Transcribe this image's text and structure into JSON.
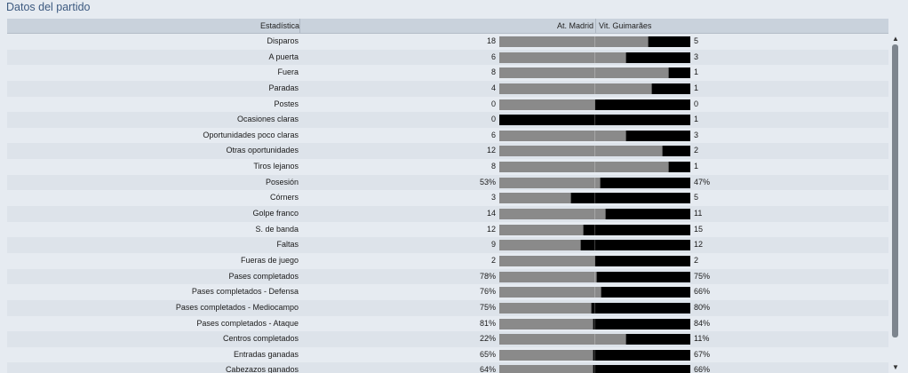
{
  "title": "Datos del partido",
  "header": {
    "stat_label": "Estadística",
    "team1": "At. Madrid",
    "team2": "Vit. Guimarães"
  },
  "rows": [
    {
      "label": "Disparos",
      "v1": "18",
      "v2": "5",
      "share": 0.783
    },
    {
      "label": "A puerta",
      "v1": "6",
      "v2": "3",
      "share": 0.667
    },
    {
      "label": "Fuera",
      "v1": "8",
      "v2": "1",
      "share": 0.889
    },
    {
      "label": "Paradas",
      "v1": "4",
      "v2": "1",
      "share": 0.8
    },
    {
      "label": "Postes",
      "v1": "0",
      "v2": "0",
      "share": 0.5
    },
    {
      "label": "Ocasiones claras",
      "v1": "0",
      "v2": "1",
      "share": 0.0
    },
    {
      "label": "Oportunidades poco claras",
      "v1": "6",
      "v2": "3",
      "share": 0.667
    },
    {
      "label": "Otras oportunidades",
      "v1": "12",
      "v2": "2",
      "share": 0.857
    },
    {
      "label": "Tiros lejanos",
      "v1": "8",
      "v2": "1",
      "share": 0.889
    },
    {
      "label": "Posesión",
      "v1": "53%",
      "v2": "47%",
      "share": 0.53
    },
    {
      "label": "Córners",
      "v1": "3",
      "v2": "5",
      "share": 0.375
    },
    {
      "label": "Golpe franco",
      "v1": "14",
      "v2": "11",
      "share": 0.56
    },
    {
      "label": "S. de banda",
      "v1": "12",
      "v2": "15",
      "share": 0.444
    },
    {
      "label": "Faltas",
      "v1": "9",
      "v2": "12",
      "share": 0.429
    },
    {
      "label": "Fueras de juego",
      "v1": "2",
      "v2": "2",
      "share": 0.5
    },
    {
      "label": "Pases completados",
      "v1": "78%",
      "v2": "75%",
      "share": 0.51
    },
    {
      "label": "Pases completados - Defensa",
      "v1": "76%",
      "v2": "66%",
      "share": 0.535
    },
    {
      "label": "Pases completados - Mediocampo",
      "v1": "75%",
      "v2": "80%",
      "share": 0.484
    },
    {
      "label": "Pases completados - Ataque",
      "v1": "81%",
      "v2": "84%",
      "share": 0.491
    },
    {
      "label": "Centros completados",
      "v1": "22%",
      "v2": "11%",
      "share": 0.667
    },
    {
      "label": "Entradas ganadas",
      "v1": "65%",
      "v2": "67%",
      "share": 0.492
    },
    {
      "label": "Cabezazos ganados",
      "v1": "64%",
      "v2": "66%",
      "share": 0.492
    }
  ],
  "colors": {
    "team1_bar": "#8a8a8a",
    "team2_bar": "#000000"
  },
  "scrollbar": {
    "up_icon": "▲",
    "down_icon": "▼"
  }
}
